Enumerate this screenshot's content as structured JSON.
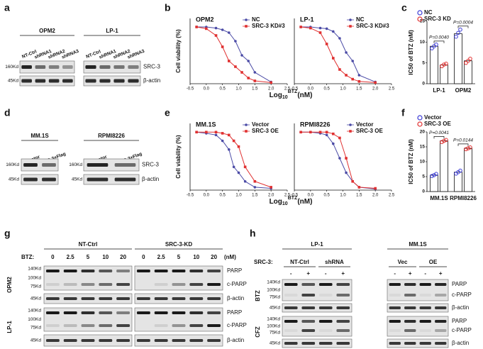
{
  "panel_a": {
    "label": "a",
    "groups": [
      {
        "title": "OPM2",
        "lanes": [
          "NT-Ctrl",
          "shRNA1",
          "shRNA2",
          "shRNA3"
        ],
        "markers": [
          "160Kd",
          "45Kd"
        ]
      },
      {
        "title": "LP-1",
        "lanes": [
          "NT-Ctrl",
          "shRNA1",
          "shRNA2",
          "shRNA3"
        ]
      }
    ],
    "proteins": [
      "SRC-3",
      "β-actin"
    ]
  },
  "panel_b": {
    "label": "b",
    "y_label": "Cell viability (%)",
    "x_label": {
      "base": "Log",
      "sub": "10",
      "sup": "BTZ",
      "unit": "(nM)"
    },
    "xlim": [
      -0.5,
      2.5
    ],
    "xticks": [
      -0.5,
      {
        "value": 0,
        "label": "0.0"
      },
      0.5,
      {
        "value": 1,
        "label": "1.0"
      },
      1.5,
      {
        "value": 2,
        "label": "2.0"
      },
      2.5
    ],
    "ylim": [
      0,
      115
    ],
    "plots": [
      {
        "title": "OPM2",
        "series": [
          {
            "name": "NC",
            "color": "#4b4ba6",
            "x": [
              -0.3,
              0,
              0.3,
              0.5,
              0.7,
              0.9,
              1.1,
              1.3,
              1.5,
              2
            ],
            "y": [
              100,
              100,
              98,
              95,
              90,
              75,
              50,
              40,
              20,
              3
            ]
          },
          {
            "name": "SRC-3 KD#3",
            "color": "#e03030",
            "x": [
              -0.3,
              0,
              0.3,
              0.5,
              0.7,
              0.9,
              1.1,
              1.3,
              1.5,
              2
            ],
            "y": [
              100,
              97,
              85,
              65,
              40,
              30,
              20,
              10,
              5,
              2
            ]
          }
        ]
      },
      {
        "title": "LP-1",
        "series": [
          {
            "name": "NC",
            "color": "#4b4ba6",
            "x": [
              -0.3,
              0,
              0.3,
              0.5,
              0.7,
              0.9,
              1.1,
              1.3,
              1.5,
              2
            ],
            "y": [
              100,
              100,
              98,
              97,
              92,
              80,
              55,
              40,
              15,
              3
            ]
          },
          {
            "name": "SRC-3 KD#3",
            "color": "#e03030",
            "x": [
              -0.3,
              0,
              0.3,
              0.5,
              0.7,
              0.9,
              1.1,
              1.3,
              1.5,
              2
            ],
            "y": [
              100,
              98,
              90,
              70,
              45,
              25,
              15,
              8,
              4,
              2
            ]
          }
        ]
      }
    ]
  },
  "panel_c": {
    "label": "c",
    "y_label": "IC50 of BTZ (nM)",
    "ylim": [
      0,
      15
    ],
    "yticks": [
      0,
      5,
      10,
      15
    ],
    "categories": [
      "LP-1",
      "OPM2"
    ],
    "series": [
      {
        "name": "NC",
        "color": "#3b3bd6",
        "values": [
          9,
          12
        ],
        "points": [
          [
            8.5,
            9,
            9.4
          ],
          [
            11.3,
            12.2,
            13
          ]
        ]
      },
      {
        "name": "SRC-3 KD",
        "color": "#e03030",
        "values": [
          4.5,
          5.5
        ],
        "points": [
          [
            4.2,
            4.6,
            4.8
          ],
          [
            5,
            5.5,
            6
          ]
        ]
      }
    ],
    "annotations": [
      "P=0.0040",
      "P=0.0004"
    ]
  },
  "panel_d": {
    "label": "d",
    "groups": [
      {
        "title": "MM.1S",
        "lanes": [
          "Vector",
          "SRC-3-3×Flag"
        ],
        "markers": [
          "160Kd",
          "45Kd"
        ]
      },
      {
        "title": "RPMI8226",
        "lanes": [
          "Vector",
          "SRC-3-3×Flag"
        ],
        "markers": [
          "160Kd",
          "45Kd"
        ]
      }
    ],
    "proteins": [
      "SRC-3",
      "β-actin"
    ]
  },
  "panel_e": {
    "label": "e",
    "y_label": "Cell viability (%)",
    "x_label": {
      "base": "Log",
      "sub": "10",
      "sup": "BTZ",
      "unit": "(nM)"
    },
    "xlim": [
      -0.5,
      2.5
    ],
    "xticks": [
      -0.5,
      {
        "value": 0,
        "label": "0.0"
      },
      0.5,
      {
        "value": 1,
        "label": "1.0"
      },
      1.5,
      {
        "value": 2,
        "label": "2.0"
      },
      2.5
    ],
    "ylim": [
      0,
      115
    ],
    "plots": [
      {
        "title": "MM.1S",
        "series": [
          {
            "name": "Vector",
            "color": "#4b4ba6",
            "x": [
              -0.3,
              0,
              0.3,
              0.5,
              0.7,
              0.85,
              1,
              1.2,
              1.5,
              2
            ],
            "y": [
              100,
              98,
              95,
              85,
              70,
              40,
              30,
              15,
              5,
              3
            ]
          },
          {
            "name": "SRC-3 OE",
            "color": "#e03030",
            "x": [
              -0.3,
              0,
              0.3,
              0.5,
              0.7,
              0.85,
              1,
              1.2,
              1.5,
              2
            ],
            "y": [
              100,
              100,
              100,
              98,
              95,
              85,
              75,
              40,
              15,
              5
            ]
          }
        ]
      },
      {
        "title": "RPMI8226",
        "series": [
          {
            "name": "Vector",
            "color": "#4b4ba6",
            "x": [
              -0.3,
              0,
              0.3,
              0.5,
              0.7,
              0.9,
              1.1,
              1.3,
              1.5,
              2
            ],
            "y": [
              100,
              100,
              98,
              95,
              80,
              55,
              30,
              15,
              5,
              2
            ]
          },
          {
            "name": "SRC-3 OE",
            "color": "#e03030",
            "x": [
              -0.3,
              0,
              0.3,
              0.5,
              0.7,
              0.9,
              1.1,
              1.3,
              1.5,
              2
            ],
            "y": [
              100,
              100,
              100,
              100,
              97,
              90,
              55,
              15,
              5,
              3
            ]
          }
        ]
      }
    ]
  },
  "panel_f": {
    "label": "f",
    "y_label": "IC50 of BTZ (nM)",
    "ylim": [
      0,
      20
    ],
    "yticks": [
      0,
      5,
      10,
      15,
      20
    ],
    "categories": [
      "MM.1S",
      "RPMI8226"
    ],
    "series": [
      {
        "name": "Vector",
        "color": "#3b3bd6",
        "values": [
          5.5,
          6.5
        ],
        "points": [
          [
            5.2,
            5.5,
            5.9
          ],
          [
            6,
            6.5,
            7
          ]
        ]
      },
      {
        "name": "SRC-3 OE",
        "color": "#e03030",
        "values": [
          17,
          14.5
        ],
        "points": [
          [
            16.6,
            17,
            17.3
          ],
          [
            14.2,
            14.5,
            14.8
          ]
        ]
      }
    ],
    "annotations": [
      "P=0.0041",
      "P=0.0144"
    ]
  },
  "panel_g": {
    "label": "g",
    "treatment_label": "BTZ:",
    "unit": "(nM)",
    "groups": [
      {
        "title": "NT-Ctrl",
        "lanes": [
          "0",
          "2.5",
          "5",
          "10",
          "20"
        ]
      },
      {
        "title": "SRC-3-KD",
        "lanes": [
          "0",
          "2.5",
          "5",
          "10",
          "20"
        ]
      }
    ],
    "blocks": [
      {
        "row_label": "OPM2",
        "markers": [
          "140Kd",
          "100Kd",
          "75Kd",
          "45Kd"
        ],
        "proteins": [
          "PARP",
          "c-PARP",
          "β-actin"
        ]
      },
      {
        "row_label": "LP-1",
        "markers": [
          "140Kd",
          "100Kd",
          "75Kd",
          "45Kd"
        ],
        "proteins": [
          "PARP",
          "c-PARP",
          "β-actin"
        ]
      }
    ]
  },
  "panel_h": {
    "label": "h",
    "treatment_label": "SRC-3:",
    "groups": [
      {
        "title": "LP-1",
        "subgroups": [
          {
            "title": "NT-Ctrl",
            "lanes": [
              "-",
              "+"
            ]
          },
          {
            "title": "shRNA",
            "lanes": [
              "-",
              "+"
            ]
          }
        ]
      },
      {
        "title": "MM.1S",
        "subgroups": [
          {
            "title": "Vec",
            "lanes": [
              "-",
              "+"
            ]
          },
          {
            "title": "OE",
            "lanes": [
              "-",
              "+"
            ]
          }
        ]
      }
    ],
    "blocks": [
      {
        "row_label": "BTZ",
        "markers": [
          "140Kd",
          "100Kd",
          "75Kd",
          "45Kd"
        ],
        "proteins": [
          "PARP",
          "c-PARP",
          "β-actin"
        ]
      },
      {
        "row_label": "CFZ",
        "markers": [
          "140Kd",
          "100Kd",
          "75Kd",
          "45Kd"
        ],
        "proteins": [
          "PARP",
          "c-PARP",
          "β-actin"
        ]
      }
    ]
  }
}
